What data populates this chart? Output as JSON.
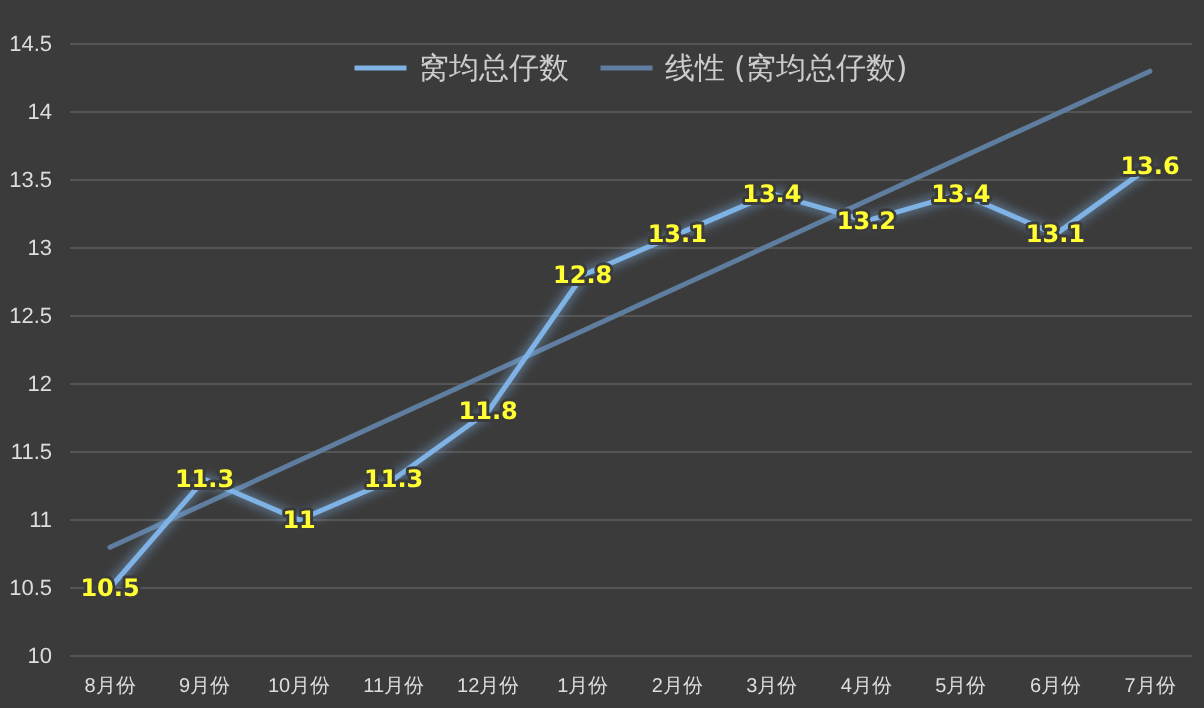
{
  "chart_data": {
    "type": "line",
    "categories": [
      "8月份",
      "9月份",
      "10月份",
      "11月份",
      "12月份",
      "1月份",
      "2月份",
      "3月份",
      "4月份",
      "5月份",
      "6月份",
      "7月份"
    ],
    "series": [
      {
        "name": "窝均总仔数",
        "color": "#7fb2e5",
        "values": [
          10.5,
          11.3,
          11,
          11.3,
          11.8,
          12.8,
          13.1,
          13.4,
          13.2,
          13.4,
          13.1,
          13.6
        ],
        "value_labels": [
          "10.5",
          "11.3",
          "11",
          "11.3",
          "11.8",
          "12.8",
          "13.1",
          "13.4",
          "13.2",
          "13.4",
          "13.1",
          "13.6"
        ]
      },
      {
        "name": "线性 (窝均总仔数)",
        "type": "line",
        "color": "#5f7d9e",
        "x": [
          "8月份",
          "7月份"
        ],
        "values": [
          10.8,
          14.3
        ]
      }
    ],
    "ylim": [
      10,
      14.5
    ],
    "yticks": [
      10,
      10.5,
      11,
      11.5,
      12,
      12.5,
      13,
      13.5,
      14,
      14.5
    ],
    "grid": "y",
    "legend": "top",
    "marker": "none",
    "line_style": "solid"
  }
}
